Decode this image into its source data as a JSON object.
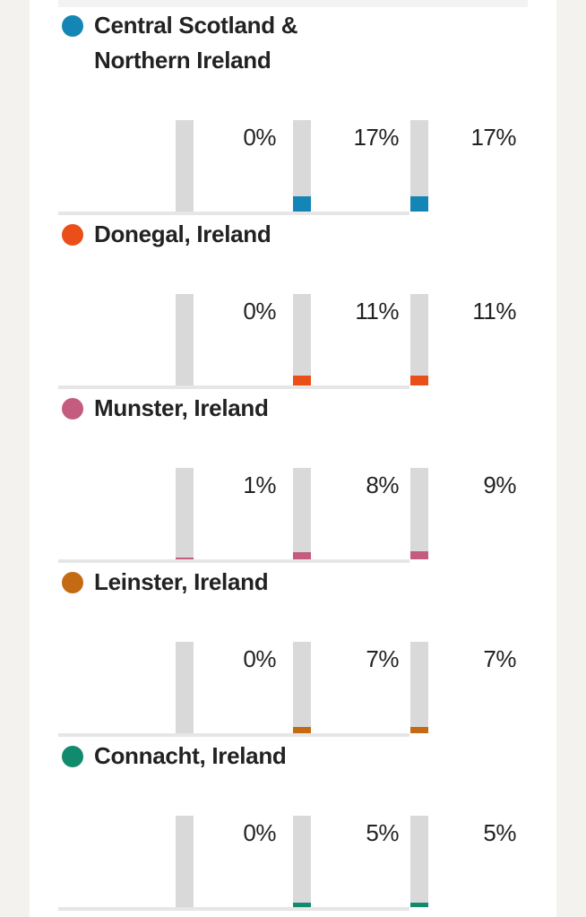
{
  "chart_data": {
    "type": "bar",
    "ylim": [
      0,
      100
    ],
    "unit": "%",
    "groups": [
      {
        "name": "Central Scotland & Northern Ireland",
        "name_lines": [
          "Central Scotland &",
          "Northern Ireland"
        ],
        "color": "#1386b5",
        "values": [
          0,
          17,
          17
        ],
        "labels": [
          "0%",
          "17%",
          "17%"
        ]
      },
      {
        "name": "Donegal, Ireland",
        "name_lines": [
          "Donegal, Ireland"
        ],
        "color": "#ea4f1a",
        "values": [
          0,
          11,
          11
        ],
        "labels": [
          "0%",
          "11%",
          "11%"
        ]
      },
      {
        "name": "Munster, Ireland",
        "name_lines": [
          "Munster, Ireland"
        ],
        "color": "#c45c80",
        "values": [
          1,
          8,
          9
        ],
        "labels": [
          "1%",
          "8%",
          "9%"
        ]
      },
      {
        "name": "Leinster, Ireland",
        "name_lines": [
          "Leinster, Ireland"
        ],
        "color": "#c46a12",
        "values": [
          0,
          7,
          7
        ],
        "labels": [
          "0%",
          "7%",
          "7%"
        ]
      },
      {
        "name": "Connacht, Ireland",
        "name_lines": [
          "Connacht, Ireland"
        ],
        "color": "#128a6e",
        "values": [
          0,
          5,
          5
        ],
        "labels": [
          "0%",
          "5%",
          "5%"
        ]
      }
    ]
  }
}
